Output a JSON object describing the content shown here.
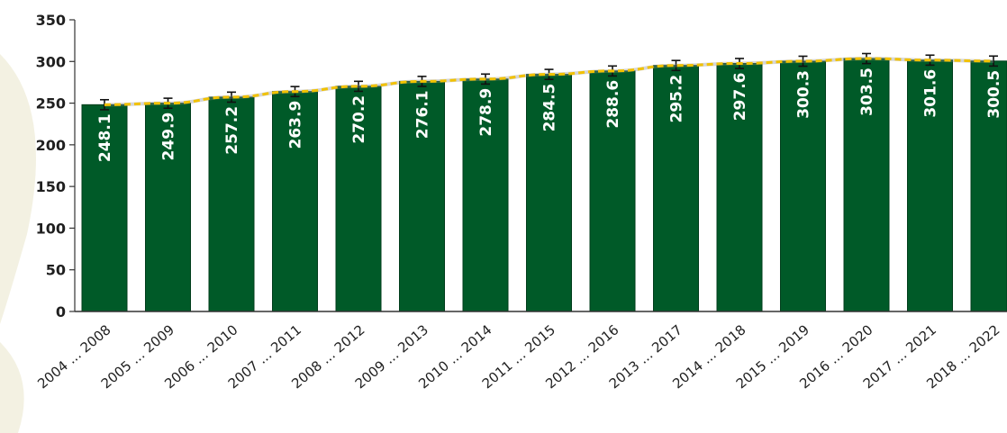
{
  "chart_data": {
    "type": "bar",
    "title": "",
    "xlabel": "",
    "ylabel": "",
    "ylim": [
      0,
      350
    ],
    "yticks": [
      0,
      50,
      100,
      150,
      200,
      250,
      300,
      350
    ],
    "grid": false,
    "legend": "none",
    "categories": [
      "2004 ... 2008",
      "2005 ... 2009",
      "2006 ... 2010",
      "2007 ... 2011",
      "2008 ... 2012",
      "2009 ... 2013",
      "2010 ... 2014",
      "2011 ... 2015",
      "2012 ... 2016",
      "2013 ... 2017",
      "2014 ... 2018",
      "2015 ... 2019",
      "2016 ... 2020",
      "2017 ... 2021",
      "2018 ... 2022"
    ],
    "values": [
      248.1,
      249.9,
      257.2,
      263.9,
      270.2,
      276.1,
      278.9,
      284.5,
      288.6,
      295.2,
      297.6,
      300.3,
      303.5,
      301.6,
      300.5
    ],
    "value_labels": [
      "248.1",
      "249.9",
      "257.2",
      "263.9",
      "270.2",
      "276.1",
      "278.9",
      "284.5",
      "288.6",
      "295.2",
      "297.6",
      "300.3",
      "303.5",
      "301.6",
      "300.5"
    ],
    "error_bars": [
      6,
      6,
      6,
      6,
      6,
      6,
      6,
      6,
      6,
      6,
      6,
      6,
      6,
      6,
      6
    ],
    "trend_line": true,
    "colors": {
      "bar": "#005a28",
      "bar_edge": "#003d1b",
      "trend": "#f2c200",
      "error": "#111111",
      "axis": "#333333",
      "background_pattern": "#f3f1e2"
    }
  }
}
